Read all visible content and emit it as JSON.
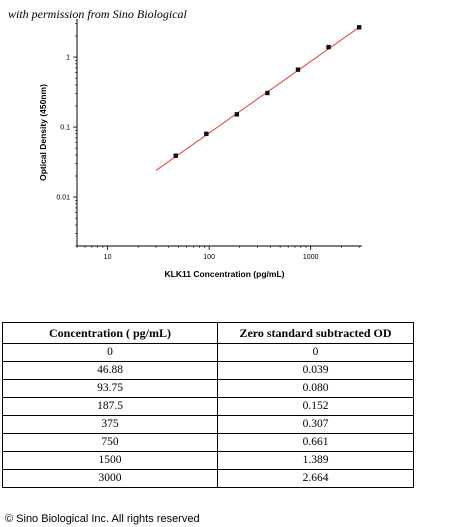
{
  "credit": "with permission from Sino Biological",
  "chart_data": {
    "type": "scatter",
    "xlabel": "KLK11 Concentration (pg/mL)",
    "ylabel": "Optical Density (450nm)",
    "x_scale": "log",
    "y_scale": "log",
    "xlim": [
      5,
      3200
    ],
    "ylim": [
      0.002,
      3.5
    ],
    "x_ticks": [
      {
        "value": 10,
        "label": "10"
      },
      {
        "value": 100,
        "label": "100"
      },
      {
        "value": 1000,
        "label": "1000"
      }
    ],
    "y_ticks": [
      {
        "value": 1,
        "label": "1"
      },
      {
        "value": 0.1,
        "label": "0.1"
      },
      {
        "value": 0.01,
        "label": "0.01"
      }
    ],
    "points": [
      {
        "x": 46.88,
        "y": 0.039
      },
      {
        "x": 93.75,
        "y": 0.08
      },
      {
        "x": 187.5,
        "y": 0.152
      },
      {
        "x": 375,
        "y": 0.307
      },
      {
        "x": 750,
        "y": 0.661
      },
      {
        "x": 1500,
        "y": 1.389
      },
      {
        "x": 3000,
        "y": 2.664
      }
    ],
    "fit_line": {
      "x_start": 30,
      "y_start": 0.024,
      "x_end": 3000,
      "y_end": 2.664,
      "color": "#e8403a"
    },
    "marker_color": "#111111"
  },
  "table": {
    "headers": [
      "Concentration ( pg/mL)",
      "Zero standard subtracted OD"
    ],
    "rows": [
      [
        "0",
        "0"
      ],
      [
        "46.88",
        "0.039"
      ],
      [
        "93.75",
        "0.080"
      ],
      [
        "187.5",
        "0.152"
      ],
      [
        "375",
        "0.307"
      ],
      [
        "750",
        "0.661"
      ],
      [
        "1500",
        "1.389"
      ],
      [
        "3000",
        "2.664"
      ]
    ]
  },
  "footer": "© Sino Biological Inc. All rights reserved"
}
